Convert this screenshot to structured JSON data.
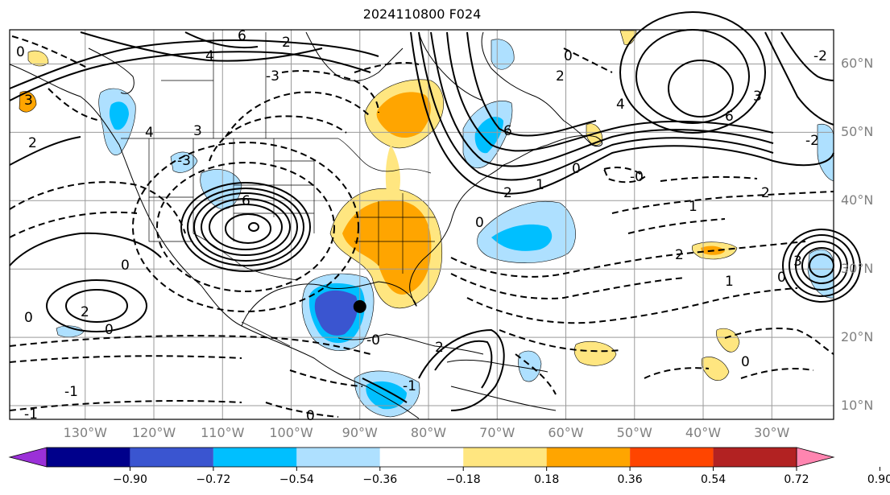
{
  "title": "2024110800 F024",
  "map": {
    "lat_labels": [
      "60°N",
      "50°N",
      "40°N",
      "30°N",
      "20°N",
      "10°N"
    ],
    "lat_values": [
      60,
      50,
      40,
      30,
      20,
      10
    ],
    "lon_labels": [
      "130°W",
      "120°W",
      "110°W",
      "100°W",
      "90°W",
      "80°W",
      "70°W",
      "60°W",
      "50°W",
      "40°W",
      "30°W"
    ],
    "lon_values": [
      -130,
      -120,
      -110,
      -100,
      -90,
      -80,
      -70,
      -60,
      -50,
      -40,
      -30
    ],
    "extent": {
      "lon_min": -141,
      "lon_max": -21,
      "lat_min": 8,
      "lat_max": 65
    },
    "marker": {
      "lon": -90,
      "lat": 24.5
    },
    "contour_labels": [
      "6",
      "4",
      "3",
      "2",
      "0",
      "-1",
      "-2",
      "-3",
      "1",
      "-0"
    ]
  },
  "colorbar": {
    "ticks": [
      "−0.90",
      "−0.72",
      "−0.54",
      "−0.36",
      "−0.18",
      "0.18",
      "0.36",
      "0.54",
      "0.72",
      "0.90"
    ],
    "colors": [
      "#9b30d8",
      "#00008b",
      "#3a55d0",
      "#00bfff",
      "#aee0ff",
      "#ffffff",
      "#ffe680",
      "#ffa500",
      "#ff4500",
      "#b22222",
      "#ff85b0"
    ]
  },
  "colors": {
    "grid": "#9a9a9a",
    "gray_label": "#7f7f7f"
  }
}
